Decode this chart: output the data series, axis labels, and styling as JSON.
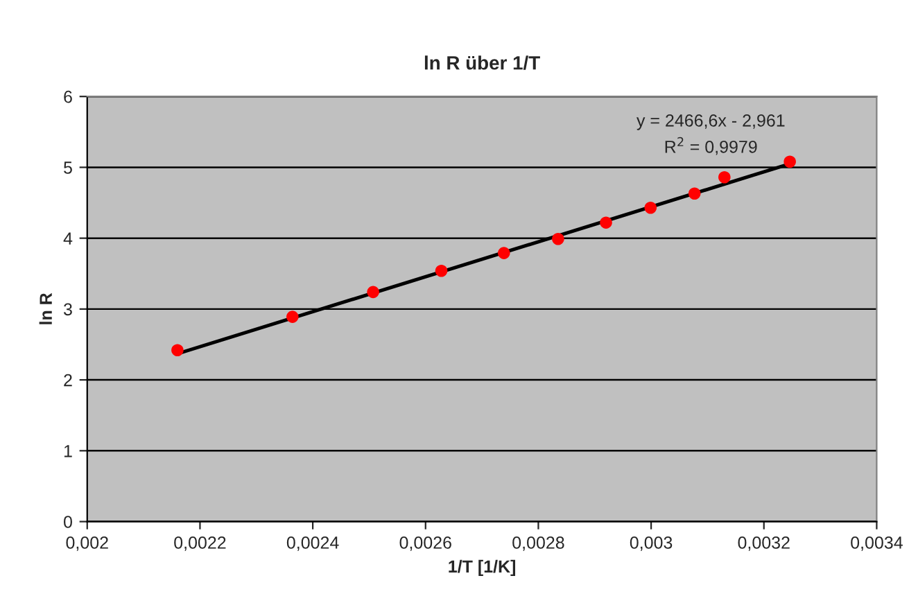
{
  "chart_data": {
    "type": "scatter",
    "title": "ln R über 1/T",
    "xlabel": "1/T [1/K]",
    "ylabel": "ln R",
    "series": [
      {
        "color": "#ff0000",
        "marker": "circle",
        "x": [
          0.00216,
          0.002364,
          0.002507,
          0.002628,
          0.002739,
          0.002835,
          0.00292,
          0.002999,
          0.003077,
          0.00313,
          0.003246
        ],
        "values": [
          2.42,
          2.89,
          3.24,
          3.54,
          3.79,
          3.99,
          4.22,
          4.43,
          4.63,
          4.86,
          5.08
        ]
      },
      {
        "type": "line",
        "color": "#000000",
        "marker": "none",
        "line_style": "solid",
        "x": [
          0.00216,
          0.003246
        ],
        "values": [
          2.37,
          5.05
        ]
      }
    ],
    "annotations": [
      "y = 2466,6x - 2,961",
      "R$^{2}$ = 0,9979"
    ],
    "xlim": [
      0.002,
      0.0034
    ],
    "ylim": [
      0,
      6
    ],
    "xticks": [
      {
        "value": 0.002,
        "label": "0,002"
      },
      {
        "value": 0.0022,
        "label": "0,0022"
      },
      {
        "value": 0.0024,
        "label": "0,0024"
      },
      {
        "value": 0.0026,
        "label": "0,0026"
      },
      {
        "value": 0.0028,
        "label": "0,0028"
      },
      {
        "value": 0.003,
        "label": "0,003"
      },
      {
        "value": 0.0032,
        "label": "0,0032"
      },
      {
        "value": 0.0034,
        "label": "0,0034"
      }
    ],
    "yticks": [
      0,
      1,
      2,
      3,
      4,
      5,
      6
    ],
    "grid": "y",
    "legend": false
  }
}
